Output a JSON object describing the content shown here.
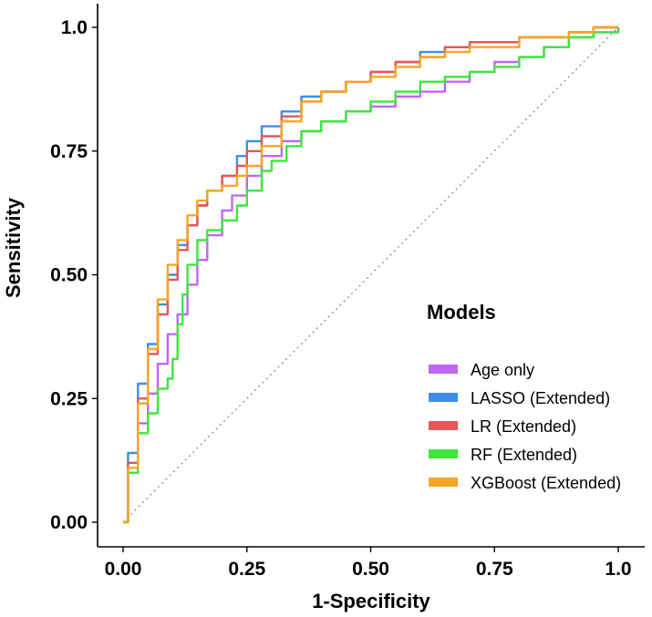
{
  "chart_data": {
    "type": "line",
    "title": "",
    "xlabel": "1-Specificity",
    "ylabel": "Sensitivity",
    "xlim": [
      0,
      1
    ],
    "ylim": [
      0,
      1
    ],
    "x_ticks": [
      "0.00",
      "0.25",
      "0.50",
      "0.75",
      "1.0"
    ],
    "y_ticks": [
      "0.00",
      "0.25",
      "0.50",
      "0.75",
      "1.0"
    ],
    "grid": false,
    "legend": {
      "title": "Models",
      "position": "right"
    },
    "reference_line": {
      "style": "dotted",
      "from": [
        0,
        0
      ],
      "to": [
        1,
        1
      ]
    },
    "series": [
      {
        "name": "Age only",
        "color": "#c066f0",
        "x": [
          0,
          0.01,
          0.03,
          0.05,
          0.07,
          0.09,
          0.11,
          0.13,
          0.15,
          0.17,
          0.2,
          0.22,
          0.25,
          0.28,
          0.32,
          0.36,
          0.4,
          0.45,
          0.5,
          0.55,
          0.6,
          0.65,
          0.7,
          0.75,
          0.8,
          0.85,
          0.9,
          0.95,
          1.0
        ],
        "y": [
          0,
          0.1,
          0.2,
          0.26,
          0.32,
          0.38,
          0.42,
          0.48,
          0.53,
          0.58,
          0.63,
          0.66,
          0.7,
          0.74,
          0.77,
          0.79,
          0.81,
          0.83,
          0.84,
          0.86,
          0.87,
          0.89,
          0.91,
          0.93,
          0.94,
          0.96,
          0.98,
          0.99,
          1.0
        ]
      },
      {
        "name": "LASSO (Extended)",
        "color": "#3f8ee6",
        "x": [
          0,
          0.01,
          0.03,
          0.05,
          0.07,
          0.09,
          0.11,
          0.13,
          0.15,
          0.17,
          0.2,
          0.23,
          0.25,
          0.28,
          0.32,
          0.36,
          0.4,
          0.45,
          0.5,
          0.55,
          0.6,
          0.65,
          0.7,
          0.8,
          0.9,
          0.95,
          1.0
        ],
        "y": [
          0,
          0.14,
          0.28,
          0.36,
          0.44,
          0.5,
          0.56,
          0.6,
          0.64,
          0.67,
          0.7,
          0.74,
          0.77,
          0.8,
          0.83,
          0.86,
          0.87,
          0.89,
          0.91,
          0.93,
          0.95,
          0.96,
          0.97,
          0.98,
          0.99,
          1.0,
          1.0
        ]
      },
      {
        "name": "LR (Extended)",
        "color": "#e85656",
        "x": [
          0,
          0.01,
          0.03,
          0.05,
          0.07,
          0.09,
          0.11,
          0.13,
          0.15,
          0.17,
          0.2,
          0.23,
          0.25,
          0.28,
          0.32,
          0.36,
          0.4,
          0.45,
          0.5,
          0.55,
          0.6,
          0.65,
          0.7,
          0.8,
          0.9,
          0.95,
          1.0
        ],
        "y": [
          0,
          0.12,
          0.25,
          0.34,
          0.42,
          0.49,
          0.55,
          0.6,
          0.64,
          0.67,
          0.7,
          0.72,
          0.75,
          0.78,
          0.82,
          0.85,
          0.87,
          0.89,
          0.91,
          0.93,
          0.94,
          0.96,
          0.97,
          0.98,
          0.99,
          1.0,
          1.0
        ]
      },
      {
        "name": "RF (Extended)",
        "color": "#3ee63e",
        "x": [
          0,
          0.01,
          0.03,
          0.05,
          0.07,
          0.09,
          0.1,
          0.11,
          0.12,
          0.13,
          0.15,
          0.17,
          0.2,
          0.23,
          0.25,
          0.28,
          0.3,
          0.33,
          0.36,
          0.4,
          0.45,
          0.5,
          0.55,
          0.6,
          0.65,
          0.7,
          0.75,
          0.8,
          0.85,
          0.9,
          0.95,
          1.0
        ],
        "y": [
          0,
          0.1,
          0.18,
          0.22,
          0.27,
          0.29,
          0.33,
          0.4,
          0.46,
          0.52,
          0.57,
          0.59,
          0.61,
          0.64,
          0.67,
          0.71,
          0.73,
          0.76,
          0.79,
          0.81,
          0.83,
          0.85,
          0.87,
          0.89,
          0.9,
          0.91,
          0.92,
          0.94,
          0.96,
          0.98,
          0.99,
          1.0
        ]
      },
      {
        "name": "XGBoost (Extended)",
        "color": "#f5a623",
        "x": [
          0,
          0.01,
          0.03,
          0.05,
          0.07,
          0.09,
          0.11,
          0.13,
          0.15,
          0.17,
          0.2,
          0.23,
          0.25,
          0.28,
          0.32,
          0.36,
          0.4,
          0.45,
          0.5,
          0.55,
          0.6,
          0.65,
          0.7,
          0.8,
          0.9,
          0.95,
          1.0
        ],
        "y": [
          0,
          0.11,
          0.24,
          0.35,
          0.45,
          0.52,
          0.57,
          0.62,
          0.65,
          0.67,
          0.68,
          0.7,
          0.72,
          0.76,
          0.81,
          0.85,
          0.87,
          0.89,
          0.9,
          0.92,
          0.94,
          0.95,
          0.96,
          0.98,
          0.99,
          1.0,
          1.0
        ]
      }
    ]
  }
}
